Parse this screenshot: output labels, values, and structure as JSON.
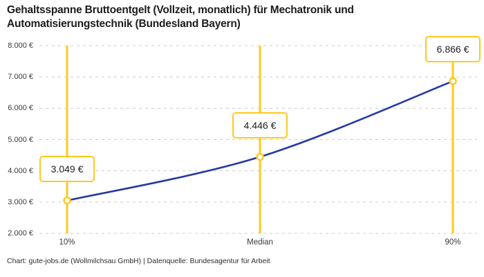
{
  "title": {
    "text": "Gehaltsspanne Bruttoentgelt (Vollzeit, monatlich) für Mechatronik und Automatisierungstechnik (Bundesland Bayern)"
  },
  "footer": {
    "text": "Chart: gute-jobs.de (Wollmilchsau GmbH) | Datenquelle: Bundesagentur für Arbeit"
  },
  "colors": {
    "accent_yellow": "#FFC91F",
    "line_blue": "#2639A2",
    "grid_gray": "#CCCCCC",
    "text_dark": "#1C1C1C",
    "text_axis": "#3A3A3A",
    "marker_fill": "#FFFFFF"
  },
  "chart_data": {
    "type": "line",
    "title": "Gehaltsspanne Bruttoentgelt (Vollzeit, monatlich) für Mechatronik und Automatisierungstechnik (Bundesland Bayern)",
    "categories": [
      "10%",
      "Median",
      "90%"
    ],
    "values": [
      3049,
      4446,
      6866
    ],
    "value_labels": [
      "3.049 €",
      "4.446 €",
      "6.866 €"
    ],
    "unit": "€",
    "ylim": [
      2000,
      8000
    ],
    "y_tick_step": 1000,
    "y_ticks": [
      {
        "value": 2000,
        "label": "2.000 €"
      },
      {
        "value": 3000,
        "label": "3.000 €"
      },
      {
        "value": 4000,
        "label": "4.000 €"
      },
      {
        "value": 5000,
        "label": "5.000 €"
      },
      {
        "value": 6000,
        "label": "6.000 €"
      },
      {
        "value": 7000,
        "label": "7.000 €"
      },
      {
        "value": 8000,
        "label": "8.000 €"
      }
    ],
    "grid": "horizontal-dashed",
    "legend": "none",
    "annotations": "each percentile has a vertical highlight line and a framed value label above its data point"
  }
}
